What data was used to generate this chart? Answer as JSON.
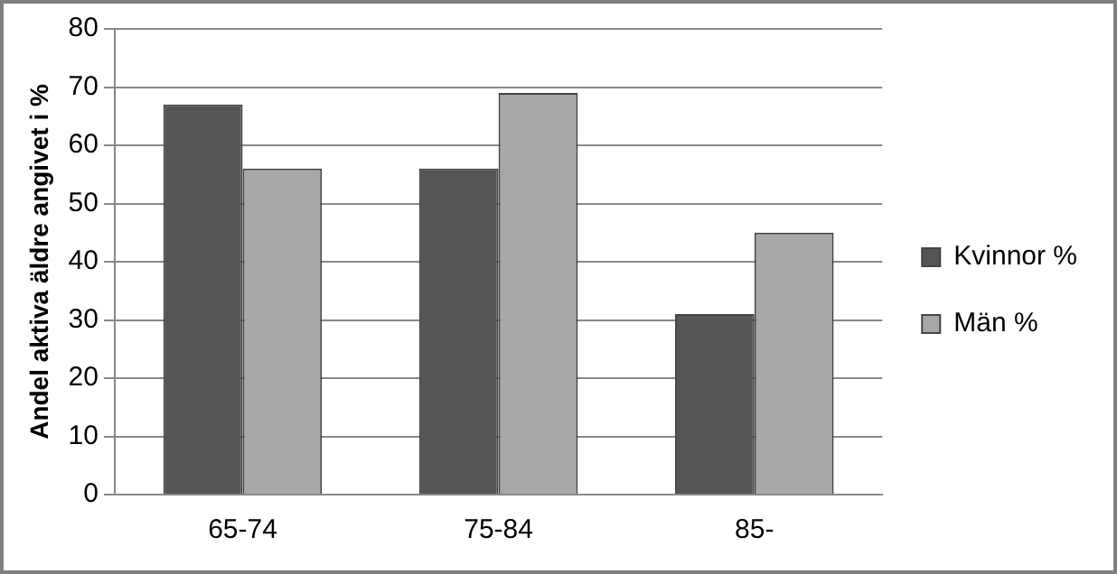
{
  "chart_data": {
    "type": "bar",
    "ylabel": "Andel aktiva äldre angivet i %",
    "categories": [
      "65-74",
      "75-84",
      "85-"
    ],
    "series": [
      {
        "name": "Kvinnor %",
        "color": "#555555",
        "values": [
          67,
          56,
          31
        ]
      },
      {
        "name": "Män %",
        "color": "#a8a8a8",
        "values": [
          56,
          69,
          45
        ]
      }
    ],
    "ylim": [
      0,
      80
    ],
    "yticks": [
      0,
      10,
      20,
      30,
      40,
      50,
      60,
      70,
      80
    ],
    "grid": "y",
    "legend": "right"
  }
}
